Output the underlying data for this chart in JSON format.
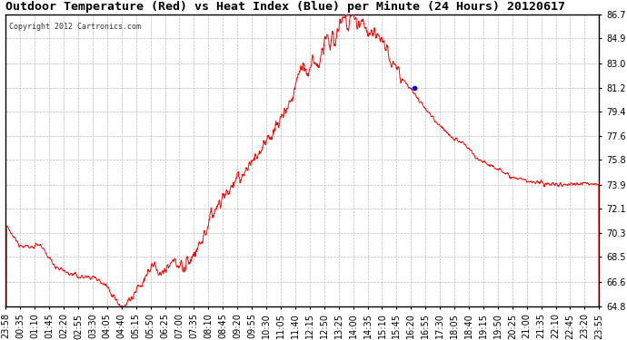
{
  "title": "Outdoor Temperature (Red) vs Heat Index (Blue) per Minute (24 Hours) 20120617",
  "copyright": "Copyright 2012 Cartronics.com",
  "ylim": [
    64.8,
    86.7
  ],
  "yticks": [
    64.8,
    66.6,
    68.5,
    70.3,
    72.1,
    73.9,
    75.8,
    77.6,
    79.4,
    81.2,
    83.0,
    84.9,
    86.7
  ],
  "line_color": "#ff0000",
  "heat_index_color": "#0000ff",
  "background_color": "#ffffff",
  "grid_color": "#bbbbbb",
  "title_fontsize": 9.5,
  "tick_fontsize": 7,
  "xtick_labels": [
    "23:58",
    "00:35",
    "01:10",
    "01:45",
    "02:20",
    "02:55",
    "03:30",
    "04:05",
    "04:40",
    "05:15",
    "05:50",
    "06:25",
    "07:00",
    "07:35",
    "08:10",
    "08:45",
    "09:20",
    "09:55",
    "10:30",
    "11:05",
    "11:40",
    "12:15",
    "12:50",
    "13:25",
    "14:00",
    "14:35",
    "15:10",
    "15:45",
    "16:20",
    "16:55",
    "17:30",
    "18:05",
    "18:40",
    "19:15",
    "19:50",
    "20:25",
    "21:00",
    "21:35",
    "22:10",
    "22:45",
    "23:20",
    "23:55"
  ],
  "blue_dot_hour": 16.5,
  "blue_dot_temp": 81.2
}
